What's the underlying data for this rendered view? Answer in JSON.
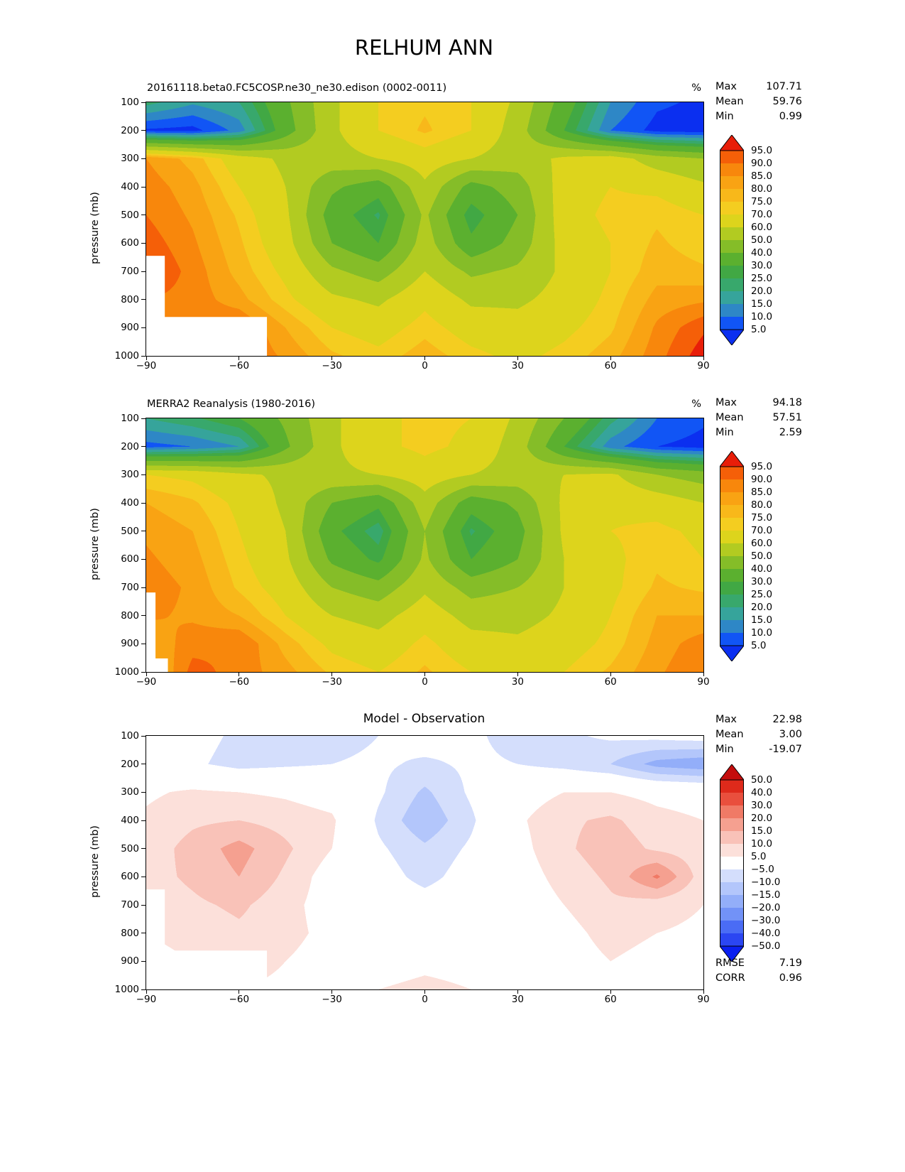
{
  "title": "RELHUM ANN",
  "axes": {
    "ylabel": "pressure (mb)",
    "x_tick_labels": [
      "−90",
      "−60",
      "−30",
      "0",
      "30",
      "60",
      "90"
    ],
    "x_tick_values": [
      -90,
      -60,
      -30,
      0,
      30,
      60,
      90
    ],
    "y_tick_labels": [
      "100",
      "200",
      "300",
      "400",
      "500",
      "600",
      "700",
      "800",
      "900",
      "1000"
    ],
    "y_tick_values": [
      100,
      200,
      300,
      400,
      500,
      600,
      700,
      800,
      900,
      1000
    ]
  },
  "panels": [
    {
      "title": "20161118.beta0.FC5COSP.ne30_ne30.edison (0002-0011)",
      "units": "%",
      "stats": [
        {
          "label": "Max",
          "value": "107.71"
        },
        {
          "label": "Mean",
          "value": "59.76"
        },
        {
          "label": "Min",
          "value": "0.99"
        }
      ]
    },
    {
      "title": "MERRA2 Reanalysis (1980-2016)",
      "units": "%",
      "stats": [
        {
          "label": "Max",
          "value": "94.18"
        },
        {
          "label": "Mean",
          "value": "57.51"
        },
        {
          "label": "Min",
          "value": "2.59"
        }
      ]
    },
    {
      "title": "Model - Observation",
      "units": "",
      "stats": [
        {
          "label": "Max",
          "value": "22.98"
        },
        {
          "label": "Mean",
          "value": "3.00"
        },
        {
          "label": "Min",
          "value": "-19.07"
        }
      ],
      "extra_stats": [
        {
          "label": "RMSE",
          "value": "7.19"
        },
        {
          "label": "CORR",
          "value": "0.96"
        }
      ]
    }
  ],
  "chart_data": [
    {
      "type": "heatmap",
      "title": "20161118.beta0.FC5COSP.ne30_ne30.edison (0002-0011)",
      "units": "%",
      "ylabel": "pressure (mb)",
      "x_range": [
        -90,
        90
      ],
      "y_range": [
        100,
        1000
      ],
      "x_values": [
        -90,
        -75,
        -60,
        -45,
        -30,
        -15,
        0,
        15,
        30,
        45,
        60,
        75,
        90
      ],
      "y_values": [
        100,
        200,
        300,
        400,
        500,
        600,
        700,
        800,
        900,
        1000
      ],
      "values": [
        [
          22,
          16,
          20,
          38,
          58,
          70,
          74,
          70,
          58,
          35,
          15,
          6,
          4
        ],
        [
          4,
          3,
          12,
          35,
          58,
          70,
          76,
          70,
          55,
          30,
          10,
          3,
          2
        ],
        [
          85,
          78,
          65,
          58,
          56,
          60,
          66,
          60,
          55,
          62,
          65,
          55,
          50
        ],
        [
          88,
          82,
          70,
          60,
          42,
          34,
          58,
          36,
          45,
          65,
          70,
          68,
          62
        ],
        [
          90,
          84,
          74,
          62,
          35,
          24,
          52,
          26,
          40,
          66,
          72,
          74,
          70
        ],
        [
          93,
          86,
          76,
          64,
          40,
          30,
          55,
          32,
          44,
          64,
          70,
          76,
          72
        ],
        [
          96,
          88,
          78,
          68,
          52,
          45,
          60,
          48,
          52,
          62,
          70,
          78,
          76
        ],
        [
          90,
          88,
          82,
          72,
          62,
          58,
          68,
          58,
          58,
          64,
          72,
          82,
          84
        ],
        [
          85,
          88,
          91,
          80,
          70,
          66,
          73,
          66,
          64,
          68,
          74,
          86,
          94
        ],
        [
          80,
          84,
          90,
          84,
          76,
          72,
          78,
          72,
          68,
          72,
          78,
          88,
          98
        ]
      ],
      "levels": [
        5,
        10,
        15,
        20,
        25,
        30,
        40,
        50,
        60,
        70,
        75,
        80,
        85,
        90,
        95
      ],
      "band_colors": [
        "#0b2ff0",
        "#1155f5",
        "#2e87c6",
        "#36a49b",
        "#38a86c",
        "#41a844",
        "#5bb02f",
        "#85bd28",
        "#b2cb21",
        "#ddd41c",
        "#f4cd20",
        "#f8b81a",
        "#f9a313",
        "#f8870c",
        "#f55f08",
        "#e81e09"
      ],
      "colorbar_tick_labels": [
        "95.0",
        "90.0",
        "85.0",
        "80.0",
        "75.0",
        "70.0",
        "60.0",
        "50.0",
        "40.0",
        "30.0",
        "25.0",
        "20.0",
        "15.0",
        "10.0",
        "5.0"
      ],
      "mask_rects": [
        {
          "x": [
            -90,
            -84
          ],
          "y": [
            645,
            1000
          ]
        },
        {
          "x": [
            -90,
            -51
          ],
          "y": [
            862,
            1000
          ]
        }
      ],
      "stats": {
        "max": 107.71,
        "mean": 59.76,
        "min": 0.99
      }
    },
    {
      "type": "heatmap",
      "title": "MERRA2 Reanalysis (1980-2016)",
      "units": "%",
      "ylabel": "pressure (mb)",
      "x_range": [
        -90,
        90
      ],
      "y_range": [
        100,
        1000
      ],
      "x_values": [
        -90,
        -75,
        -60,
        -45,
        -30,
        -15,
        0,
        15,
        30,
        45,
        60,
        75,
        90
      ],
      "y_values": [
        100,
        200,
        300,
        400,
        500,
        600,
        700,
        800,
        900,
        1000
      ],
      "values": [
        [
          20,
          24,
          30,
          42,
          58,
          68,
          72,
          70,
          58,
          40,
          22,
          10,
          6
        ],
        [
          8,
          10,
          15,
          38,
          58,
          68,
          72,
          68,
          55,
          30,
          12,
          5,
          3
        ],
        [
          70,
          68,
          62,
          58,
          58,
          60,
          66,
          60,
          56,
          60,
          62,
          50,
          45
        ],
        [
          80,
          76,
          68,
          58,
          40,
          32,
          56,
          34,
          42,
          62,
          68,
          66,
          60
        ],
        [
          84,
          80,
          70,
          60,
          32,
          22,
          50,
          24,
          36,
          62,
          70,
          72,
          68
        ],
        [
          86,
          82,
          72,
          62,
          38,
          28,
          52,
          30,
          40,
          60,
          68,
          74,
          70
        ],
        [
          88,
          84,
          74,
          66,
          50,
          44,
          58,
          46,
          50,
          60,
          68,
          76,
          74
        ],
        [
          86,
          84,
          80,
          70,
          60,
          56,
          66,
          56,
          56,
          62,
          70,
          80,
          80
        ],
        [
          80,
          88,
          90,
          78,
          68,
          64,
          72,
          64,
          62,
          66,
          72,
          82,
          88
        ],
        [
          75,
          92,
          88,
          82,
          74,
          70,
          76,
          70,
          66,
          70,
          76,
          84,
          90
        ]
      ],
      "levels": [
        5,
        10,
        15,
        20,
        25,
        30,
        40,
        50,
        60,
        70,
        75,
        80,
        85,
        90,
        95
      ],
      "band_colors": [
        "#0b2ff0",
        "#1155f5",
        "#2e87c6",
        "#36a49b",
        "#38a86c",
        "#41a844",
        "#5bb02f",
        "#85bd28",
        "#b2cb21",
        "#ddd41c",
        "#f4cd20",
        "#f8b81a",
        "#f9a313",
        "#f8870c",
        "#f55f08",
        "#e81e09"
      ],
      "colorbar_tick_labels": [
        "95.0",
        "90.0",
        "85.0",
        "80.0",
        "75.0",
        "70.0",
        "60.0",
        "50.0",
        "40.0",
        "30.0",
        "25.0",
        "20.0",
        "15.0",
        "10.0",
        "5.0"
      ],
      "mask_rects": [
        {
          "x": [
            -90,
            -87
          ],
          "y": [
            718,
            1000
          ]
        },
        {
          "x": [
            -90,
            -83
          ],
          "y": [
            952,
            1000
          ]
        }
      ],
      "stats": {
        "max": 94.18,
        "mean": 57.51,
        "min": 2.59
      }
    },
    {
      "type": "heatmap",
      "title": "Model - Observation",
      "units": "%",
      "ylabel": "pressure (mb)",
      "x_range": [
        -90,
        90
      ],
      "y_range": [
        100,
        1000
      ],
      "x_values": [
        -90,
        -75,
        -60,
        -45,
        -30,
        -15,
        0,
        15,
        30,
        45,
        60,
        75,
        90
      ],
      "y_values": [
        100,
        200,
        300,
        400,
        500,
        600,
        700,
        800,
        900,
        1000
      ],
      "values": [
        [
          0,
          -3,
          -6,
          -7,
          -7,
          -5,
          -2,
          -4,
          -7,
          -6,
          -4,
          -3,
          -2
        ],
        [
          0,
          -4,
          -7,
          -6,
          -5,
          -4,
          -6,
          -4,
          -5,
          -7,
          -10,
          -17,
          -19
        ],
        [
          4,
          6,
          5,
          4,
          2,
          -4,
          -11,
          -4,
          2,
          5,
          5,
          3,
          2
        ],
        [
          6,
          9,
          10,
          8,
          6,
          -6,
          -14,
          -6,
          4,
          9,
          11,
          7,
          5
        ],
        [
          7,
          12,
          17,
          11,
          5,
          -4,
          -9,
          -4,
          3,
          9,
          13,
          9,
          7
        ],
        [
          8,
          11,
          15,
          9,
          2,
          -2,
          -7,
          -2,
          2,
          7,
          11,
          21,
          7
        ],
        [
          7,
          9,
          11,
          7,
          2,
          0,
          -2,
          0,
          1,
          5,
          9,
          7,
          5
        ],
        [
          5,
          7,
          9,
          7,
          3,
          1,
          2,
          1,
          1,
          3,
          7,
          5,
          4
        ],
        [
          3,
          5,
          7,
          5,
          2,
          1,
          3,
          2,
          1,
          2,
          5,
          3,
          2
        ],
        [
          2,
          3,
          5,
          4,
          3,
          5,
          7,
          5,
          3,
          2,
          3,
          2,
          1
        ]
      ],
      "levels": [
        -50,
        -40,
        -30,
        -20,
        -15,
        -10,
        -5,
        5,
        10,
        15,
        20,
        30,
        40,
        50
      ],
      "band_colors": [
        "#0a1ff0",
        "#2b46f2",
        "#4a6cf5",
        "#7292f7",
        "#93aef9",
        "#b3c6fb",
        "#d4defc",
        "#ffffff",
        "#fce0da",
        "#f9c2b8",
        "#f5a090",
        "#f07a66",
        "#e94f3d",
        "#de2a1b",
        "#c40d0d"
      ],
      "colorbar_tick_labels": [
        "50.0",
        "40.0",
        "30.0",
        "20.0",
        "15.0",
        "10.0",
        "5.0",
        "−5.0",
        "−10.0",
        "−15.0",
        "−20.0",
        "−30.0",
        "−40.0",
        "−50.0"
      ],
      "mask_rects": [
        {
          "x": [
            -90,
            -84
          ],
          "y": [
            645,
            1000
          ]
        },
        {
          "x": [
            -90,
            -51
          ],
          "y": [
            862,
            1000
          ]
        }
      ],
      "stats": {
        "max": 22.98,
        "mean": 3.0,
        "min": -19.07,
        "rmse": 7.19,
        "corr": 0.96
      }
    }
  ]
}
